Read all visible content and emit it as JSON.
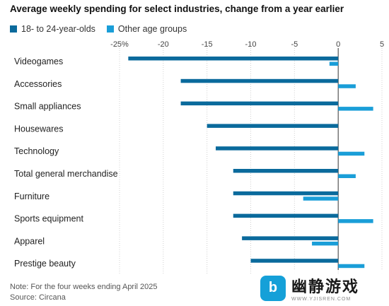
{
  "chart_data": {
    "type": "bar",
    "orientation": "horizontal",
    "title": "Average weekly spending for select industries, change from a year earlier",
    "categories": [
      "Videogames",
      "Accessories",
      "Small appliances",
      "Housewares",
      "Technology",
      "Total general merchandise",
      "Furniture",
      "Sports equipment",
      "Apparel",
      "Prestige beauty"
    ],
    "series": [
      {
        "name": "18- to 24-year-olds",
        "color": "#0a6a9c",
        "values": [
          -24,
          -18,
          -18,
          -15,
          -14,
          -12,
          -12,
          -12,
          -11,
          -10
        ]
      },
      {
        "name": "Other age groups",
        "color": "#1a9ed8",
        "values": [
          -1,
          2,
          4,
          0,
          3,
          2,
          -4,
          4,
          -3,
          3
        ]
      }
    ],
    "xticks": [
      -25,
      -20,
      -15,
      -10,
      -5,
      0,
      5
    ],
    "xtick_labels": [
      "-25%",
      "-20",
      "-15",
      "-10",
      "-5",
      "0",
      "5"
    ],
    "xlim": [
      -25,
      5
    ],
    "legend_position": "top-left",
    "grid": true
  },
  "note": "Note: For the four weeks ending April 2025",
  "source": "Source: Circana",
  "watermark": {
    "name": "幽静游戏",
    "url": "WWW.YJISREN.COM",
    "logo_letter": "b"
  }
}
